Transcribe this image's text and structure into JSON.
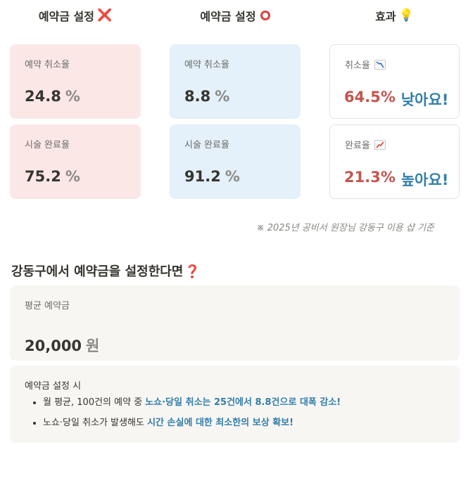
{
  "columns": [
    {
      "title": "예약금 설정",
      "icon": "cross-mark-icon",
      "icon_glyph": "❌"
    },
    {
      "title": "예약금 설정",
      "icon": "circle-icon",
      "icon_glyph": ""
    },
    {
      "title": "효과",
      "icon": "bulb-icon",
      "icon_glyph": "💡"
    }
  ],
  "without_deposit": {
    "cancel": {
      "label": "예약 취소율",
      "value": "24.8",
      "unit": "%"
    },
    "complete": {
      "label": "시술 완료율",
      "value": "75.2",
      "unit": "%"
    }
  },
  "with_deposit": {
    "cancel": {
      "label": "예약 취소율",
      "value": "8.8",
      "unit": "%"
    },
    "complete": {
      "label": "시술 완료율",
      "value": "91.2",
      "unit": "%"
    }
  },
  "effect": {
    "cancel": {
      "label": "취소율",
      "icon": "chart-decreasing-icon",
      "pct": "64.5%",
      "word": "낮아요!"
    },
    "complete": {
      "label": "완료율",
      "icon": "chart-increasing-icon",
      "pct": "21.3%",
      "word": "높아요!"
    }
  },
  "note": "※ 2025년 공비서 원장님 강동구 이용 샵 기준",
  "section_title": "강동구에서 예약금을 설정한다면",
  "section_title_mark": "❓",
  "average": {
    "label": "평균 예약금",
    "value": "20,000",
    "unit": "원"
  },
  "info": {
    "title": "예약금 설정 시",
    "bullets": [
      {
        "plain": "월 평균, 100건의 예약 중 ",
        "highlight": "노쇼·당일 취소는 25건에서 8.8건으로 대폭 감소!"
      },
      {
        "plain": "노쇼·당일 취소가 발생해도 ",
        "highlight": "시간 손실에 대한 최소한의 보상 확보!"
      }
    ]
  },
  "colors": {
    "red_card": "#fbe8e6",
    "blue_card": "#e4f0fa",
    "effect_pct": "#c4554d",
    "effect_word": "#337ea9",
    "highlight": "#337ea9"
  }
}
